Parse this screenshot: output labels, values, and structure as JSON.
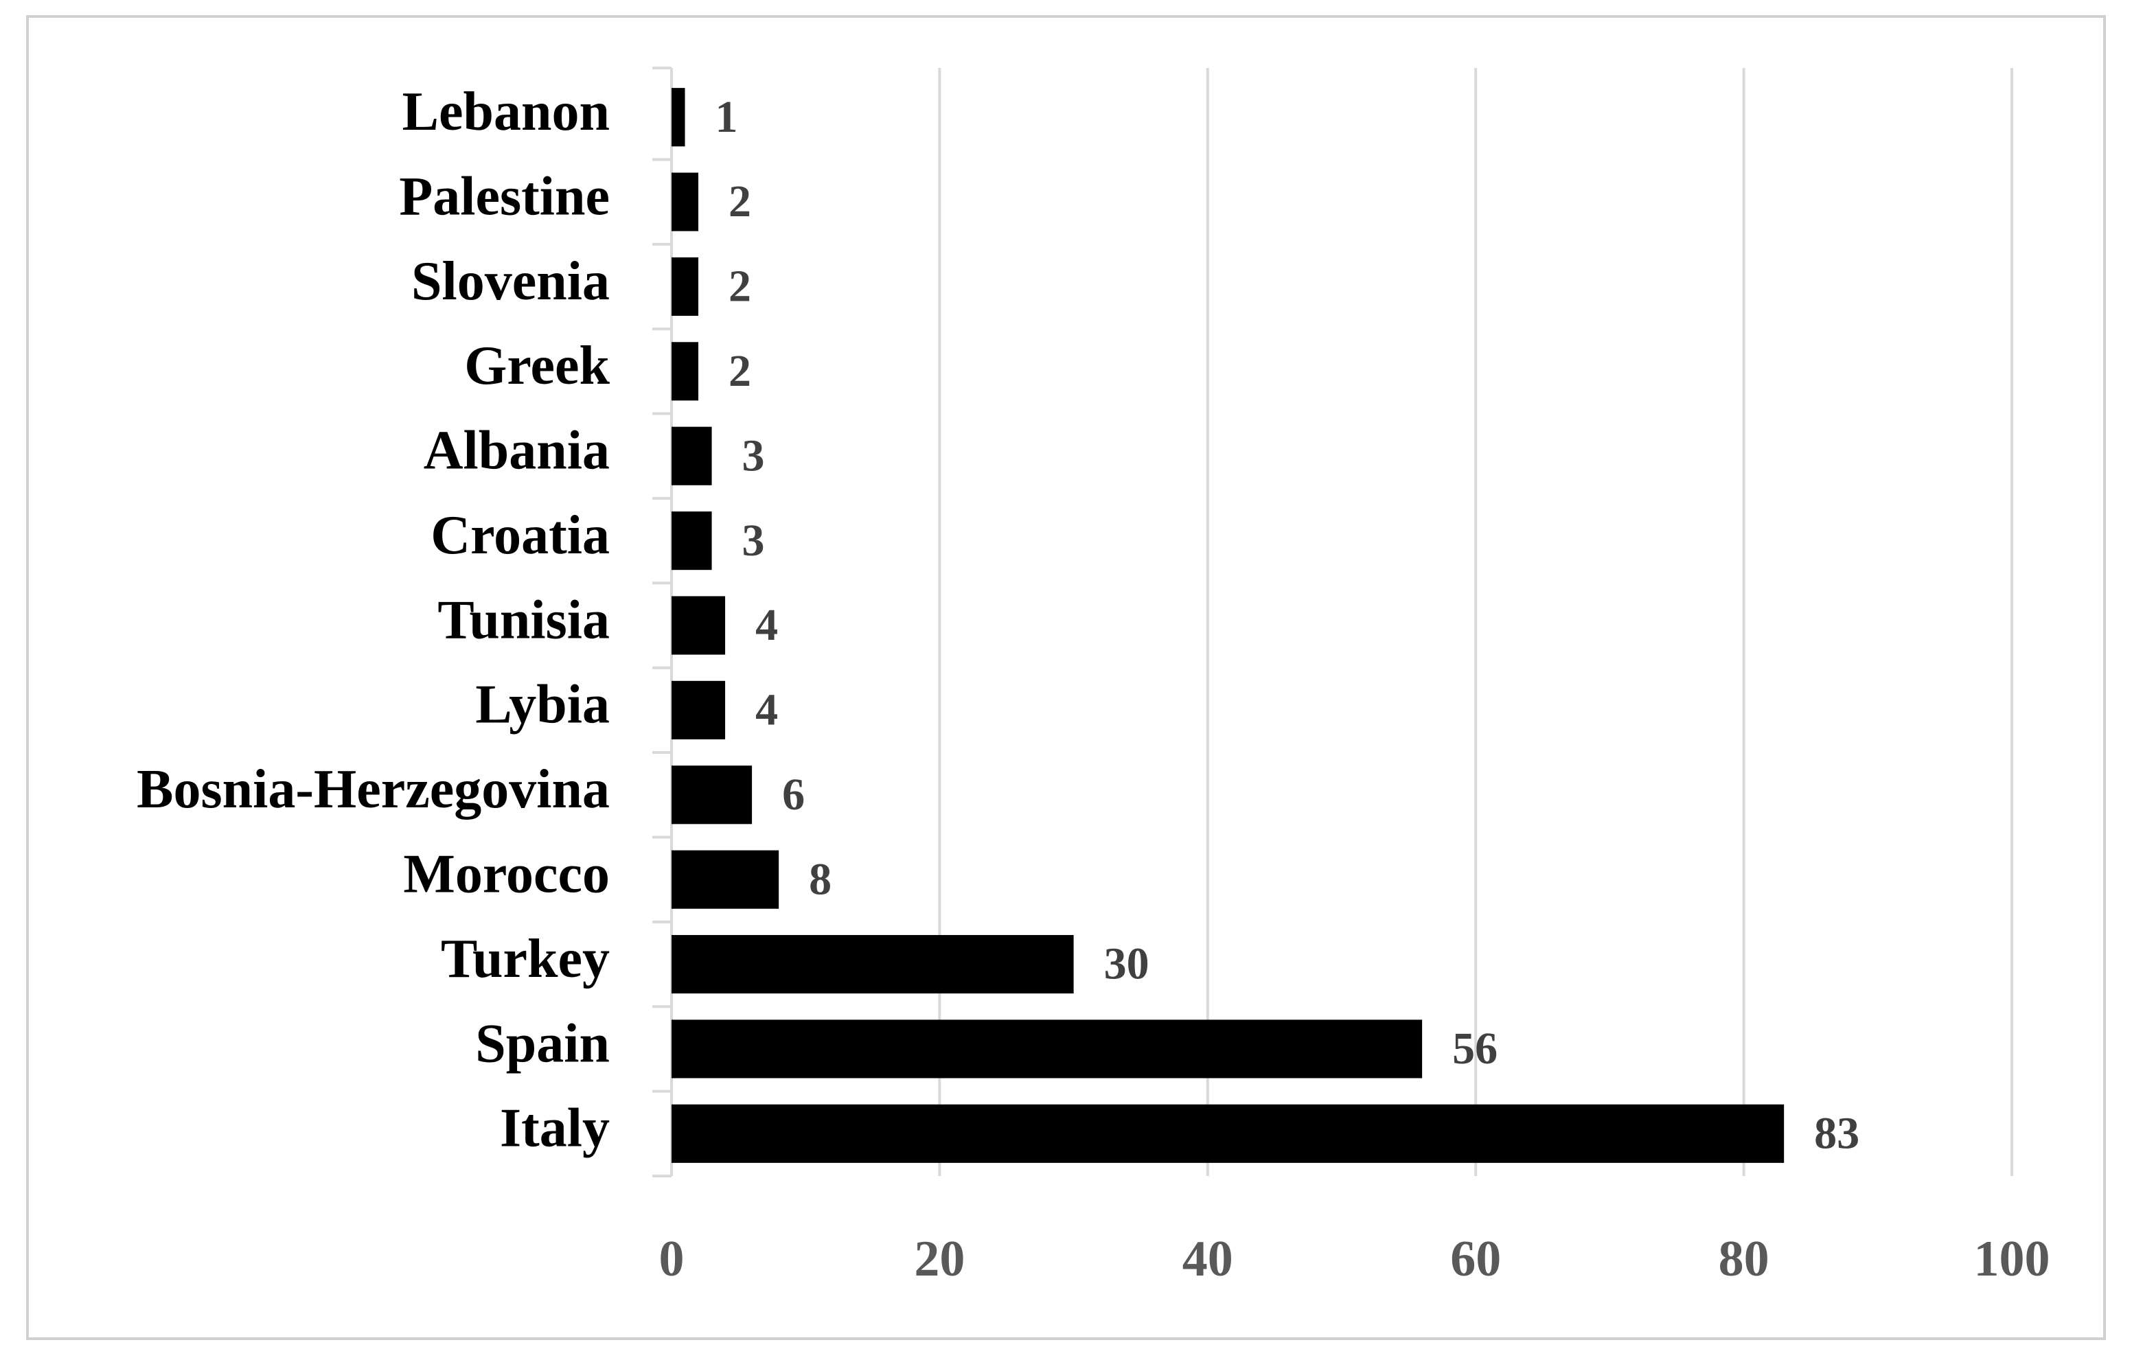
{
  "chart_data": {
    "type": "bar",
    "orientation": "horizontal",
    "categories": [
      "Lebanon",
      "Palestine",
      "Slovenia",
      "Greek",
      "Albania",
      "Croatia",
      "Tunisia",
      "Lybia",
      "Bosnia-Herzegovina",
      "Morocco",
      "Turkey",
      "Spain",
      "Italy"
    ],
    "values": [
      1,
      2,
      2,
      2,
      3,
      3,
      4,
      4,
      6,
      8,
      30,
      56,
      83
    ],
    "color": "#000000",
    "xlim": [
      0,
      100
    ],
    "xticks": [
      0,
      20,
      40,
      60,
      80,
      100
    ],
    "grid": true
  }
}
